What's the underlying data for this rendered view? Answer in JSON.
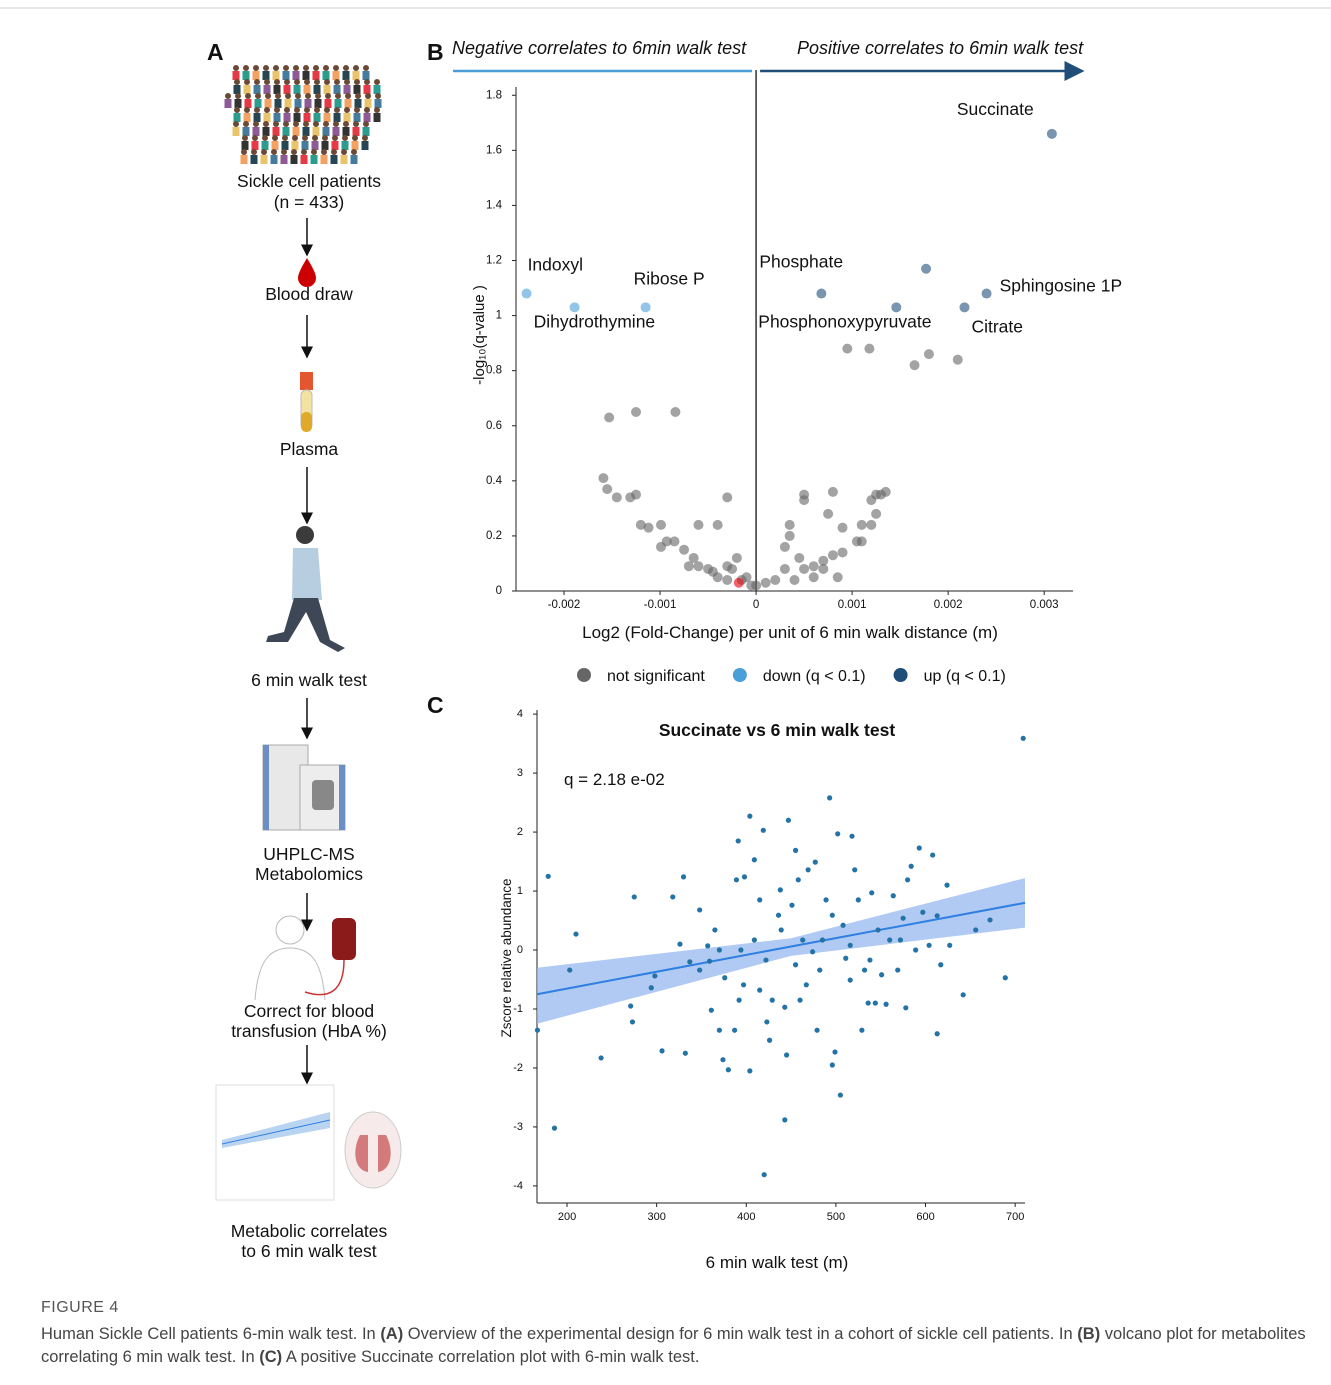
{
  "panel_letters": [
    "A",
    "B",
    "C"
  ],
  "diagram": {
    "steps": [
      [
        "Sickle cell patients",
        "(n = 433)"
      ],
      [
        "Blood draw"
      ],
      [
        "Plasma"
      ],
      [
        "6 min walk test"
      ],
      [
        "UHPLC-MS",
        "Metabolomics"
      ],
      [
        "Correct for blood",
        "transfusion (HbA %)"
      ],
      [
        "Metabolic correlates",
        "to 6 min walk test"
      ]
    ]
  },
  "chart_data": [
    {
      "type": "scatter",
      "annotations": [
        "Negative correlates to 6min walk test",
        "Positive correlates to 6min walk test"
      ],
      "x_label": "Log2 (Fold-Change) per unit of 6 min walk distance (m)",
      "y_label": "-log₁₀(q-value )",
      "xlim": [
        -0.0025,
        0.0033
      ],
      "ylim": [
        0,
        1.83
      ],
      "xticks": [
        -0.002,
        -0.001,
        0,
        0.001,
        0.002,
        0.003
      ],
      "yticks": [
        0,
        0.2,
        0.4,
        0.6,
        0.8,
        1,
        1.2,
        1.4,
        1.6,
        1.8
      ],
      "legend": "bottom",
      "series": [
        {
          "name": "not significant",
          "color": "#666666",
          "x": [
            -0.00153,
            -0.00125,
            -0.00084,
            -0.00159,
            -0.00155,
            -0.00145,
            -0.00125,
            -0.00131,
            -0.0012,
            -0.00112,
            -0.00099,
            -0.00093,
            -0.00085,
            -0.0006,
            -0.0003,
            -0.0004,
            -0.00099,
            -0.00075,
            -0.00065,
            -0.0007,
            -0.0006,
            -0.0005,
            -0.00045,
            -0.0003,
            -0.0002,
            -0.00025,
            -0.0004,
            -0.00015,
            -0.0001,
            -5e-05,
            -0.0003,
            0,
            0.0001,
            0.0002,
            0.0003,
            0.00035,
            0.00035,
            0.0003,
            0.00045,
            0.0005,
            0.0006,
            0.0007,
            0.0008,
            0.0009,
            0.0005,
            0.0005,
            0.0009,
            0.00105,
            0.0011,
            0.0011,
            0.0012,
            0.00125,
            0.0012,
            0.00125,
            0.00135,
            0.0013,
            0.00075,
            0.00085,
            0.0007,
            0.00095,
            0.00118,
            0.00165,
            0.0018,
            0.0021,
            0.0008,
            0.0004,
            0.0006
          ],
          "y": [
            0.63,
            0.65,
            0.65,
            0.41,
            0.37,
            0.34,
            0.35,
            0.34,
            0.24,
            0.23,
            0.24,
            0.18,
            0.18,
            0.24,
            0.34,
            0.24,
            0.16,
            0.15,
            0.12,
            0.09,
            0.09,
            0.08,
            0.07,
            0.09,
            0.12,
            0.08,
            0.05,
            0.04,
            0.05,
            0.02,
            0.04,
            0.02,
            0.03,
            0.04,
            0.08,
            0.24,
            0.2,
            0.16,
            0.12,
            0.08,
            0.09,
            0.11,
            0.13,
            0.14,
            0.35,
            0.33,
            0.23,
            0.18,
            0.18,
            0.24,
            0.24,
            0.28,
            0.33,
            0.35,
            0.36,
            0.35,
            0.28,
            0.05,
            0.08,
            0.88,
            0.88,
            0.82,
            0.86,
            0.84,
            0.36,
            0.04,
            0.05
          ]
        },
        {
          "color": "#e8000b",
          "x": [
            -0.00018
          ],
          "y": [
            0.03
          ]
        },
        {
          "name": "down (q < 0.1)",
          "color": "#4a9fd8",
          "x": [
            -0.00239,
            -0.00189,
            -0.00115
          ],
          "y": [
            1.08,
            1.03,
            1.03
          ],
          "labels": [
            "Indoxyl",
            "Dihydrothymine",
            "Ribose P"
          ]
        },
        {
          "name": "up (q < 0.1)",
          "color": "#1f4e79",
          "x": [
            0.00308,
            0.00068,
            0.00177,
            0.00146,
            0.00217,
            0.0024
          ],
          "y": [
            1.66,
            1.08,
            1.17,
            1.03,
            1.03,
            1.08
          ],
          "labels": [
            "Succinate",
            "Phosphate",
            null,
            "Phosphonoxypyruvate",
            "Citrate",
            "Sphingosine 1P"
          ]
        }
      ]
    },
    {
      "type": "scatter",
      "title": "Succinate vs 6 min walk test",
      "annotations": [
        "q = 2.18 e-02"
      ],
      "x_label": "6 min walk test (m)",
      "y_label": "Zscore relative abundance",
      "xlim": [
        166.5,
        711
      ],
      "ylim": [
        -4.29,
        4.07
      ],
      "xticks": [
        200,
        300,
        400,
        500,
        600,
        700
      ],
      "yticks": [
        -4,
        -3,
        -2,
        -1,
        0,
        1,
        2,
        3,
        4
      ],
      "series": [
        {
          "color": "#2473a6",
          "x": [
            709,
            179,
            210,
            203,
            167,
            186,
            238,
            275,
            271,
            273,
            294,
            298,
            306,
            332,
            326,
            330,
            318,
            348,
            357,
            359,
            365,
            361,
            370,
            374,
            380,
            387,
            389,
            391,
            394,
            397,
            404,
            404,
            398,
            409,
            415,
            419,
            422,
            423,
            426,
            429,
            420,
            436,
            439,
            443,
            445,
            447,
            443,
            455,
            458,
            463,
            467,
            474,
            477,
            479,
            485,
            489,
            493,
            496,
            499,
            502,
            505,
            508,
            511,
            518,
            516,
            525,
            529,
            532,
            536,
            540,
            547,
            551,
            556,
            560,
            564,
            569,
            575,
            578,
            580,
            584,
            589,
            593,
            597,
            604,
            608,
            613,
            617,
            624,
            627,
            613,
            642,
            656,
            672,
            689,
            376,
            409,
            451,
            460,
            469,
            496,
            516,
            538,
            415,
            392,
            370,
            348,
            337,
            438,
            455,
            482,
            521,
            544,
            572
          ],
          "y": [
            3.59,
            1.25,
            0.27,
            -0.34,
            -1.36,
            -3.02,
            -1.83,
            0.9,
            -0.95,
            -1.22,
            -0.64,
            -0.44,
            -1.71,
            -1.75,
            0.1,
            1.24,
            0.9,
            0.68,
            0.07,
            -0.19,
            0.34,
            -1.02,
            -1.36,
            -1.86,
            -2.03,
            -1.36,
            1.19,
            1.85,
            0,
            -0.59,
            -2.05,
            2.27,
            1.24,
            1.53,
            0.85,
            2.03,
            -0.17,
            -1.22,
            -1.53,
            -0.85,
            -3.81,
            0.59,
            0.34,
            -0.97,
            -1.78,
            2.2,
            -2.88,
            1.69,
            1.19,
            0.17,
            -0.59,
            -0.03,
            1.49,
            -1.36,
            0.17,
            0.85,
            2.58,
            -1.95,
            -1.73,
            1.97,
            -2.46,
            0.42,
            -0.14,
            1.93,
            -0.51,
            0.85,
            -1.36,
            -0.34,
            -0.9,
            0.97,
            0.34,
            -0.42,
            -0.92,
            0.17,
            0.92,
            -0.34,
            0.54,
            -0.98,
            1.19,
            1.42,
            0,
            1.73,
            0.64,
            0.08,
            1.61,
            0.58,
            -0.25,
            1.1,
            0.08,
            -1.42,
            -0.76,
            0.34,
            0.51,
            -0.47,
            -0.47,
            0.17,
            0.76,
            -0.85,
            1.36,
            0.59,
            0.08,
            -0.17,
            -0.68,
            -0.85,
            0,
            -0.34,
            -0.2,
            1.02,
            -0.25,
            -0.34,
            1.36,
            -0.9,
            0.17
          ]
        }
      ],
      "fit": {
        "color": "#2f7fe0",
        "band_color": "#8fb3f0",
        "x": [
          166.5,
          450,
          711
        ],
        "y": [
          -0.75,
          0.06,
          0.8
        ],
        "lower": [
          -1.25,
          -0.1,
          0.38
        ],
        "upper": [
          -0.3,
          0.2,
          1.22
        ]
      }
    }
  ],
  "caption": {
    "label": "FIGURE 4",
    "parts": [
      "Human Sickle Cell patients 6-min walk test. In ",
      "(A)",
      " Overview of the experimental design for 6 min walk test in a cohort of sickle cell patients. In ",
      "(B)",
      " volcano plot for metabolites correlating 6 min walk test. In ",
      "(C)",
      " A positive Succinate correlation plot with 6-min walk test."
    ]
  }
}
